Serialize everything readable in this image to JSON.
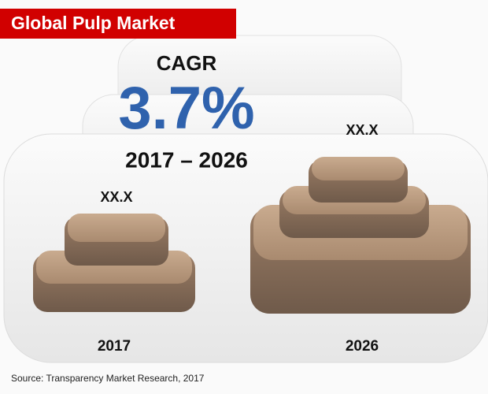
{
  "header": {
    "title": "Global Pulp Market"
  },
  "cagr": {
    "label": "CAGR",
    "value": "3.7%",
    "period": "2017 – 2026"
  },
  "items": [
    {
      "year": "2017",
      "value_label": "XX.X"
    },
    {
      "year": "2026",
      "value_label": "XX.X"
    }
  ],
  "source": "Source: Transparency Market Research, 2017"
}
